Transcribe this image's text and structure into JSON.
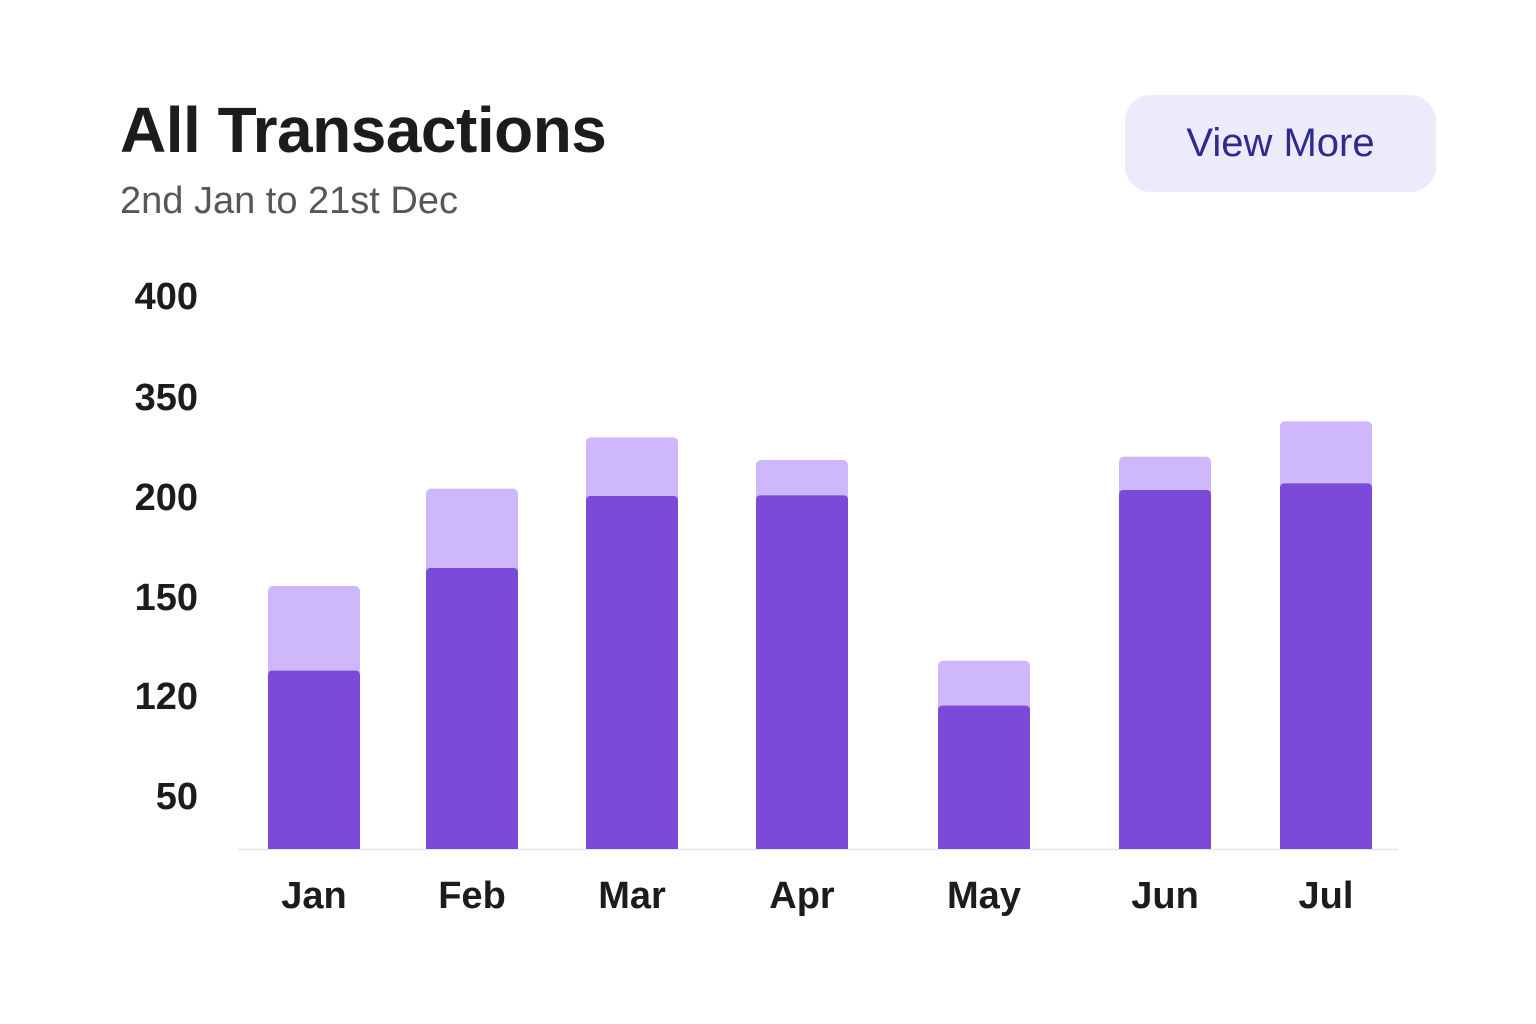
{
  "header": {
    "title": "All Transactions",
    "subtitle": "2nd Jan to 21st Dec",
    "view_more_label": "View More"
  },
  "colors": {
    "primary_bar": "#7c4ad8",
    "secondary_bar": "#ceb8fb",
    "button_bg": "#ecebfc",
    "button_text": "#2e2a8f",
    "axis_line": "#e3e3e8"
  },
  "chart_data": {
    "type": "bar",
    "stacked": true,
    "title": "All Transactions",
    "subtitle": "2nd Jan to 21st Dec",
    "categories": [
      "Jan",
      "Feb",
      "Mar",
      "Apr",
      "May",
      "Jun",
      "Jul"
    ],
    "y_ticks": [
      "50",
      "120",
      "150",
      "200",
      "350",
      "400"
    ],
    "y_tick_values": [
      50,
      120,
      150,
      200,
      350,
      400
    ],
    "series": [
      {
        "values": [
          128,
          165,
          203,
          204,
          114,
          212,
          222
        ]
      },
      {
        "values": [
          28,
          49,
          88,
          53,
          17,
          50,
          93
        ]
      }
    ],
    "grid": false,
    "legend": "none"
  }
}
